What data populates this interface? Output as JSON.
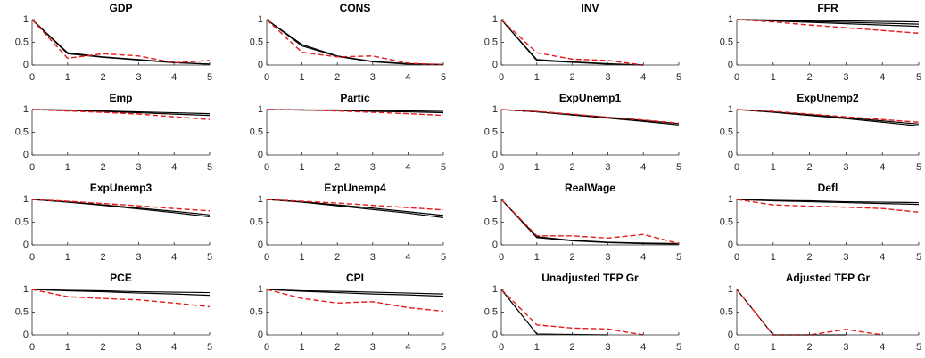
{
  "chart_data": [
    {
      "type": "line",
      "title": "GDP",
      "x": [
        0,
        1,
        2,
        3,
        4,
        5
      ],
      "xlim": [
        0,
        5
      ],
      "ylim": [
        0,
        1
      ],
      "xticks": [
        0,
        1,
        2,
        3,
        4,
        5
      ],
      "yticks": [
        0,
        0.5,
        1
      ],
      "series": [
        {
          "color": "#000000",
          "dash": false,
          "values": [
            1,
            0.27,
            0.18,
            0.12,
            0.06,
            0.02
          ]
        },
        {
          "color": "#000000",
          "dash": false,
          "values": [
            1,
            0.25,
            0.17,
            0.11,
            0.05,
            0.02
          ]
        },
        {
          "color": "#e41a1c",
          "dash": true,
          "values": [
            1,
            0.15,
            0.25,
            0.2,
            0.05,
            0.1
          ]
        }
      ]
    },
    {
      "type": "line",
      "title": "CONS",
      "x": [
        0,
        1,
        2,
        3,
        4,
        5
      ],
      "xlim": [
        0,
        5
      ],
      "ylim": [
        0,
        1
      ],
      "xticks": [
        0,
        1,
        2,
        3,
        4,
        5
      ],
      "yticks": [
        0,
        0.5,
        1
      ],
      "series": [
        {
          "color": "#000000",
          "dash": false,
          "values": [
            1,
            0.45,
            0.2,
            0.08,
            0.03,
            0.01
          ]
        },
        {
          "color": "#000000",
          "dash": false,
          "values": [
            1,
            0.42,
            0.19,
            0.07,
            0.02,
            0.01
          ]
        },
        {
          "color": "#e41a1c",
          "dash": true,
          "values": [
            1,
            0.28,
            0.18,
            0.2,
            0.04,
            0.01
          ]
        }
      ]
    },
    {
      "type": "line",
      "title": "INV",
      "x": [
        0,
        1,
        2,
        3,
        4,
        5
      ],
      "xlim": [
        0,
        5
      ],
      "ylim": [
        0,
        1
      ],
      "xticks": [
        0,
        1,
        2,
        3,
        4,
        5
      ],
      "yticks": [
        0,
        0.5,
        1
      ],
      "series": [
        {
          "color": "#000000",
          "dash": false,
          "values": [
            1,
            0.12,
            0.07,
            0.03,
            0,
            null
          ]
        },
        {
          "color": "#000000",
          "dash": false,
          "values": [
            1,
            0.1,
            0.06,
            0.02,
            0,
            null
          ]
        },
        {
          "color": "#e41a1c",
          "dash": true,
          "values": [
            1,
            0.27,
            0.13,
            0.1,
            0,
            null
          ]
        }
      ]
    },
    {
      "type": "line",
      "title": "FFR",
      "x": [
        0,
        1,
        2,
        3,
        4,
        5
      ],
      "xlim": [
        0,
        5
      ],
      "ylim": [
        0,
        1
      ],
      "xticks": [
        0,
        1,
        2,
        3,
        4,
        5
      ],
      "yticks": [
        0,
        0.5,
        1
      ],
      "series": [
        {
          "color": "#000000",
          "dash": false,
          "values": [
            1,
            0.98,
            0.96,
            0.94,
            0.92,
            0.9
          ]
        },
        {
          "color": "#000000",
          "dash": false,
          "values": [
            1,
            0.97,
            0.94,
            0.91,
            0.88,
            0.85
          ]
        },
        {
          "color": "#000000",
          "dash": false,
          "values": [
            1,
            0.99,
            0.98,
            0.97,
            0.96,
            0.95
          ]
        },
        {
          "color": "#e41a1c",
          "dash": true,
          "values": [
            1,
            0.95,
            0.88,
            0.82,
            0.76,
            0.7
          ]
        }
      ]
    },
    {
      "type": "line",
      "title": "Emp",
      "x": [
        0,
        1,
        2,
        3,
        4,
        5
      ],
      "xlim": [
        0,
        5
      ],
      "ylim": [
        0,
        1
      ],
      "xticks": [
        0,
        1,
        2,
        3,
        4,
        5
      ],
      "yticks": [
        0,
        0.5,
        1
      ],
      "series": [
        {
          "color": "#000000",
          "dash": false,
          "values": [
            1,
            0.99,
            0.97,
            0.95,
            0.93,
            0.91
          ]
        },
        {
          "color": "#000000",
          "dash": false,
          "values": [
            1,
            0.98,
            0.96,
            0.93,
            0.9,
            0.87
          ]
        },
        {
          "color": "#e41a1c",
          "dash": true,
          "values": [
            1,
            0.97,
            0.94,
            0.9,
            0.84,
            0.78
          ]
        }
      ]
    },
    {
      "type": "line",
      "title": "Partic",
      "x": [
        0,
        1,
        2,
        3,
        4,
        5
      ],
      "xlim": [
        0,
        5
      ],
      "ylim": [
        0,
        1
      ],
      "xticks": [
        0,
        1,
        2,
        3,
        4,
        5
      ],
      "yticks": [
        0,
        0.5,
        1
      ],
      "series": [
        {
          "color": "#000000",
          "dash": false,
          "values": [
            1,
            0.99,
            0.99,
            0.98,
            0.97,
            0.96
          ]
        },
        {
          "color": "#000000",
          "dash": false,
          "values": [
            1,
            0.99,
            0.98,
            0.96,
            0.95,
            0.93
          ]
        },
        {
          "color": "#e41a1c",
          "dash": true,
          "values": [
            1,
            0.99,
            0.97,
            0.94,
            0.91,
            0.87
          ]
        }
      ]
    },
    {
      "type": "line",
      "title": "ExpUnemp1",
      "x": [
        0,
        1,
        2,
        3,
        4,
        5
      ],
      "xlim": [
        0,
        5
      ],
      "ylim": [
        0,
        1
      ],
      "xticks": [
        0,
        1,
        2,
        3,
        4,
        5
      ],
      "yticks": [
        0,
        0.5,
        1
      ],
      "series": [
        {
          "color": "#000000",
          "dash": false,
          "values": [
            1,
            0.95,
            0.88,
            0.81,
            0.74,
            0.66
          ]
        },
        {
          "color": "#000000",
          "dash": false,
          "values": [
            1,
            0.95,
            0.89,
            0.83,
            0.76,
            0.69
          ]
        },
        {
          "color": "#e41a1c",
          "dash": true,
          "values": [
            1,
            0.96,
            0.9,
            0.83,
            0.77,
            0.7
          ]
        }
      ]
    },
    {
      "type": "line",
      "title": "ExpUnemp2",
      "x": [
        0,
        1,
        2,
        3,
        4,
        5
      ],
      "xlim": [
        0,
        5
      ],
      "ylim": [
        0,
        1
      ],
      "xticks": [
        0,
        1,
        2,
        3,
        4,
        5
      ],
      "yticks": [
        0,
        0.5,
        1
      ],
      "series": [
        {
          "color": "#000000",
          "dash": false,
          "values": [
            1,
            0.94,
            0.87,
            0.8,
            0.72,
            0.64
          ]
        },
        {
          "color": "#000000",
          "dash": false,
          "values": [
            1,
            0.95,
            0.89,
            0.82,
            0.75,
            0.68
          ]
        },
        {
          "color": "#e41a1c",
          "dash": true,
          "values": [
            1,
            0.96,
            0.9,
            0.84,
            0.78,
            0.72
          ]
        }
      ]
    },
    {
      "type": "line",
      "title": "ExpUnemp3",
      "x": [
        0,
        1,
        2,
        3,
        4,
        5
      ],
      "xlim": [
        0,
        5
      ],
      "ylim": [
        0,
        1
      ],
      "xticks": [
        0,
        1,
        2,
        3,
        4,
        5
      ],
      "yticks": [
        0,
        0.5,
        1
      ],
      "series": [
        {
          "color": "#000000",
          "dash": false,
          "values": [
            1,
            0.94,
            0.87,
            0.79,
            0.71,
            0.62
          ]
        },
        {
          "color": "#000000",
          "dash": false,
          "values": [
            1,
            0.95,
            0.88,
            0.81,
            0.74,
            0.66
          ]
        },
        {
          "color": "#e41a1c",
          "dash": true,
          "values": [
            1,
            0.96,
            0.91,
            0.86,
            0.8,
            0.75
          ]
        }
      ]
    },
    {
      "type": "line",
      "title": "ExpUnemp4",
      "x": [
        0,
        1,
        2,
        3,
        4,
        5
      ],
      "xlim": [
        0,
        5
      ],
      "ylim": [
        0,
        1
      ],
      "xticks": [
        0,
        1,
        2,
        3,
        4,
        5
      ],
      "yticks": [
        0,
        0.5,
        1
      ],
      "series": [
        {
          "color": "#000000",
          "dash": false,
          "values": [
            1,
            0.94,
            0.86,
            0.78,
            0.7,
            0.6
          ]
        },
        {
          "color": "#000000",
          "dash": false,
          "values": [
            1,
            0.95,
            0.88,
            0.81,
            0.73,
            0.65
          ]
        },
        {
          "color": "#e41a1c",
          "dash": true,
          "values": [
            1,
            0.96,
            0.92,
            0.87,
            0.82,
            0.77
          ]
        }
      ]
    },
    {
      "type": "line",
      "title": "RealWage",
      "x": [
        0,
        1,
        2,
        3,
        4,
        5
      ],
      "xlim": [
        0,
        5
      ],
      "ylim": [
        0,
        1
      ],
      "xticks": [
        0,
        1,
        2,
        3,
        4,
        5
      ],
      "yticks": [
        0,
        0.5,
        1
      ],
      "series": [
        {
          "color": "#000000",
          "dash": false,
          "values": [
            1,
            0.18,
            0.1,
            0.06,
            0.04,
            0.03
          ]
        },
        {
          "color": "#000000",
          "dash": false,
          "values": [
            1,
            0.16,
            0.09,
            0.05,
            0.03,
            0.02
          ]
        },
        {
          "color": "#e41a1c",
          "dash": true,
          "values": [
            1,
            0.2,
            0.2,
            0.15,
            0.23,
            0.03
          ]
        }
      ]
    },
    {
      "type": "line",
      "title": "Defl",
      "x": [
        0,
        1,
        2,
        3,
        4,
        5
      ],
      "xlim": [
        0,
        5
      ],
      "ylim": [
        0,
        1
      ],
      "xticks": [
        0,
        1,
        2,
        3,
        4,
        5
      ],
      "yticks": [
        0,
        0.5,
        1
      ],
      "series": [
        {
          "color": "#000000",
          "dash": false,
          "values": [
            1,
            0.98,
            0.97,
            0.95,
            0.94,
            0.93
          ]
        },
        {
          "color": "#000000",
          "dash": false,
          "values": [
            1,
            0.97,
            0.95,
            0.93,
            0.91,
            0.89
          ]
        },
        {
          "color": "#e41a1c",
          "dash": true,
          "values": [
            1,
            0.88,
            0.85,
            0.83,
            0.8,
            0.72
          ]
        }
      ]
    },
    {
      "type": "line",
      "title": "PCE",
      "x": [
        0,
        1,
        2,
        3,
        4,
        5
      ],
      "xlim": [
        0,
        5
      ],
      "ylim": [
        0,
        1
      ],
      "xticks": [
        0,
        1,
        2,
        3,
        4,
        5
      ],
      "yticks": [
        0,
        0.5,
        1
      ],
      "series": [
        {
          "color": "#000000",
          "dash": false,
          "values": [
            1,
            0.98,
            0.97,
            0.95,
            0.94,
            0.93
          ]
        },
        {
          "color": "#000000",
          "dash": false,
          "values": [
            1,
            0.97,
            0.95,
            0.92,
            0.9,
            0.87
          ]
        },
        {
          "color": "#e41a1c",
          "dash": true,
          "values": [
            1,
            0.84,
            0.8,
            0.77,
            0.7,
            0.62
          ]
        }
      ]
    },
    {
      "type": "line",
      "title": "CPI",
      "x": [
        0,
        1,
        2,
        3,
        4,
        5
      ],
      "xlim": [
        0,
        5
      ],
      "ylim": [
        0,
        1
      ],
      "xticks": [
        0,
        1,
        2,
        3,
        4,
        5
      ],
      "yticks": [
        0,
        0.5,
        1
      ],
      "series": [
        {
          "color": "#000000",
          "dash": false,
          "values": [
            1,
            0.97,
            0.96,
            0.94,
            0.92,
            0.9
          ]
        },
        {
          "color": "#000000",
          "dash": false,
          "values": [
            1,
            0.96,
            0.93,
            0.9,
            0.88,
            0.85
          ]
        },
        {
          "color": "#e41a1c",
          "dash": true,
          "values": [
            1,
            0.8,
            0.7,
            0.73,
            0.6,
            0.52
          ]
        }
      ]
    },
    {
      "type": "line",
      "title": "Unadjusted TFP Gr",
      "x": [
        0,
        1,
        2,
        3,
        4,
        5
      ],
      "xlim": [
        0,
        5
      ],
      "ylim": [
        0,
        1
      ],
      "xticks": [
        0,
        1,
        2,
        3,
        4,
        5
      ],
      "yticks": [
        0,
        0.5,
        1
      ],
      "series": [
        {
          "color": "#000000",
          "dash": false,
          "values": [
            1,
            0.02,
            0.01,
            0,
            null,
            null
          ]
        },
        {
          "color": "#e41a1c",
          "dash": true,
          "values": [
            1,
            0.22,
            0.15,
            0.13,
            0,
            null
          ]
        }
      ]
    },
    {
      "type": "line",
      "title": "Adjusted TFP Gr",
      "x": [
        0,
        1,
        2,
        3,
        4,
        5
      ],
      "xlim": [
        0,
        5
      ],
      "ylim": [
        0,
        1
      ],
      "xticks": [
        0,
        1,
        2,
        3,
        4,
        5
      ],
      "yticks": [
        0,
        0.5,
        1
      ],
      "series": [
        {
          "color": "#000000",
          "dash": false,
          "values": [
            1,
            0,
            0,
            0,
            null,
            null
          ]
        },
        {
          "color": "#e41a1c",
          "dash": true,
          "values": [
            1,
            0,
            0,
            0.12,
            0,
            null
          ]
        }
      ]
    }
  ]
}
